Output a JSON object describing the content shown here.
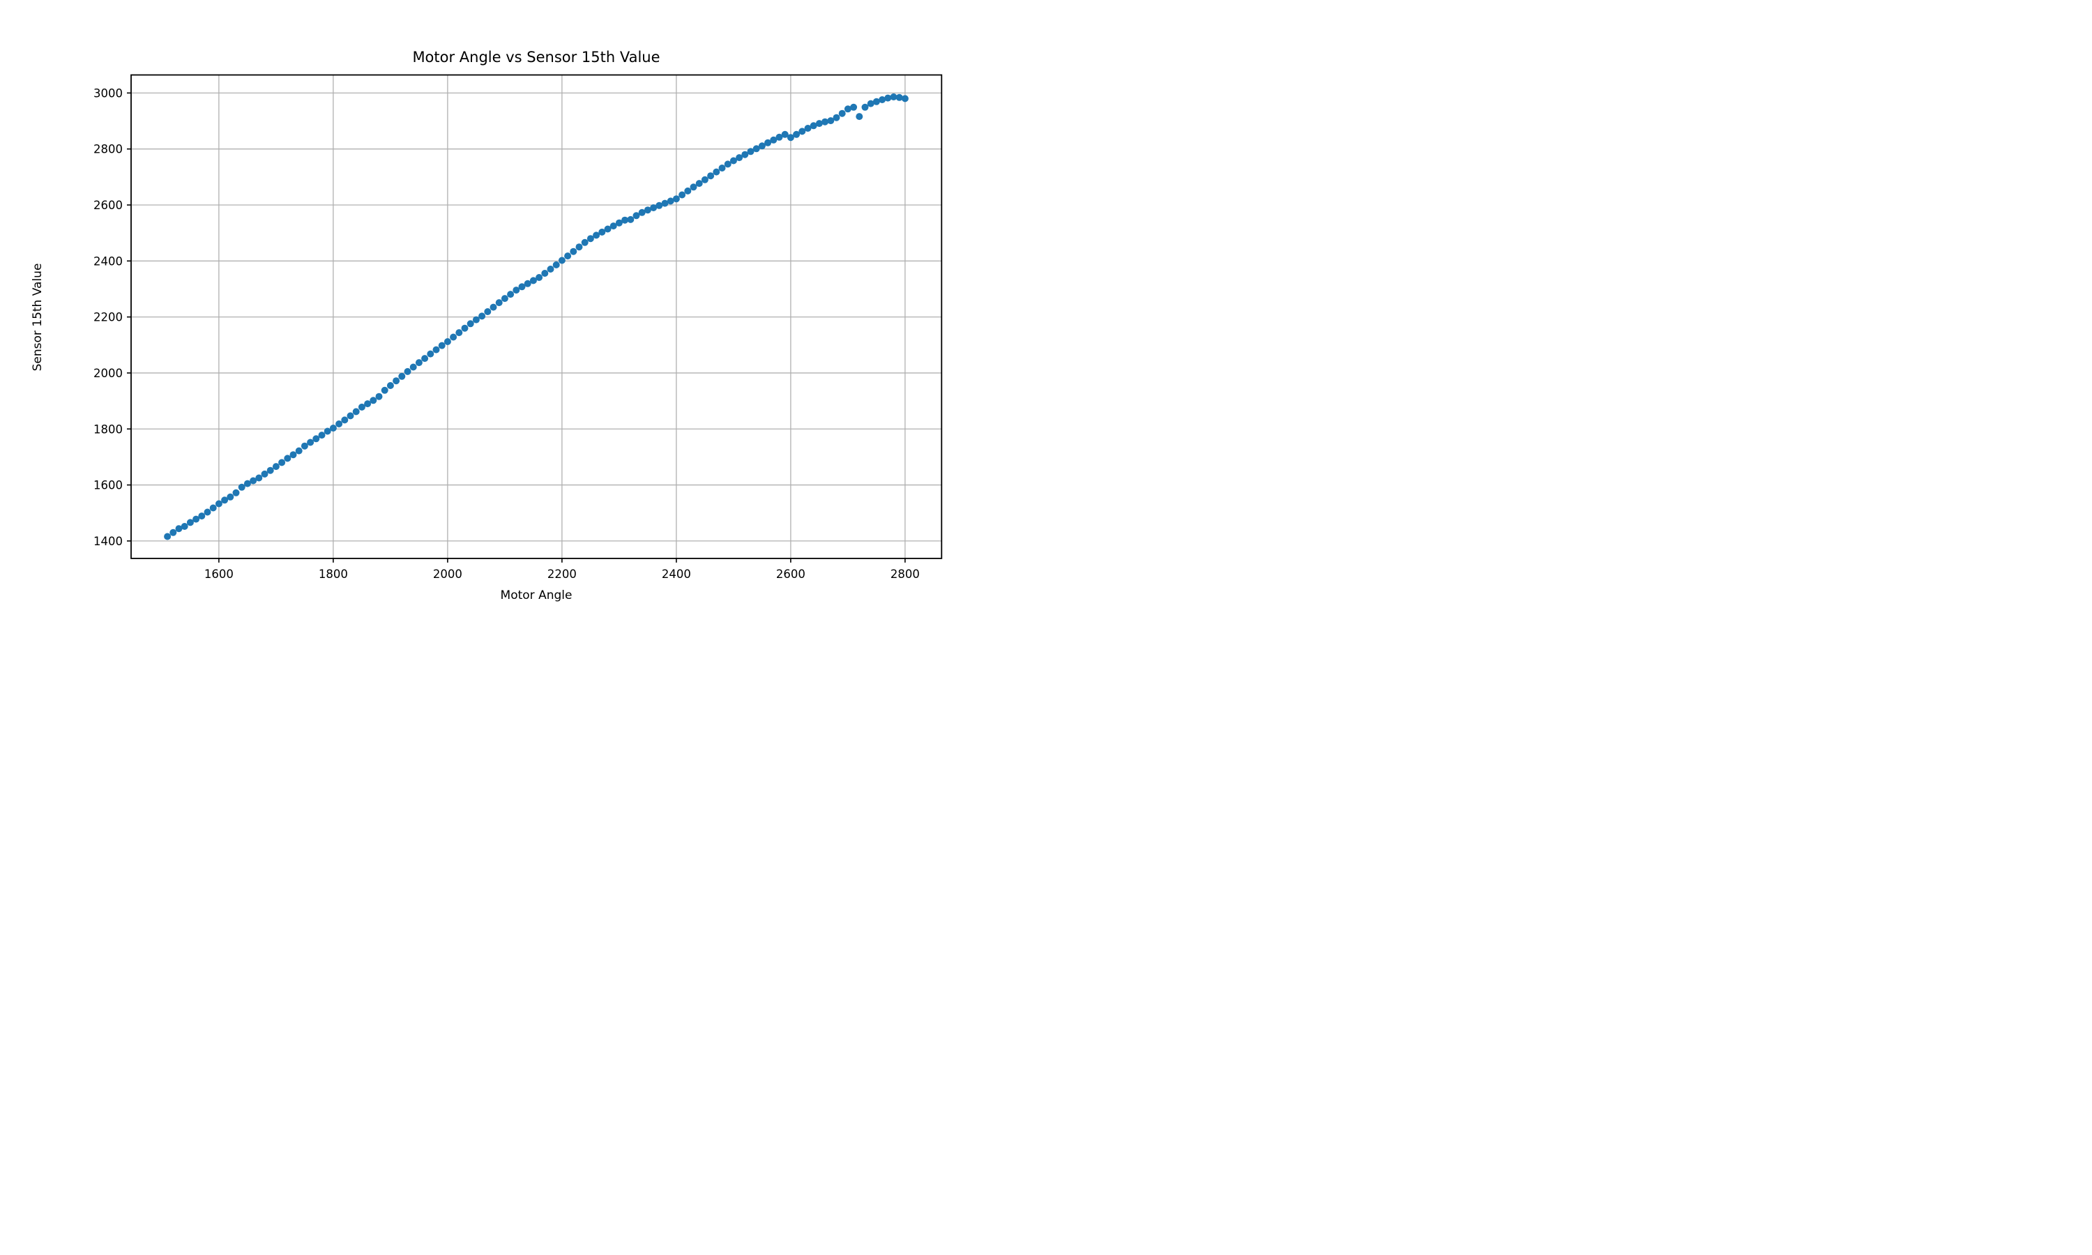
{
  "figure": {
    "title": "Motor Angle vs Sensor 15th Value"
  },
  "chart_data": {
    "type": "scatter",
    "title": "Motor Angle vs Sensor 15th Value",
    "xlabel": "Motor Angle",
    "ylabel": "Sensor 15th Value",
    "xlim": [
      1446.5,
      2863.9
    ],
    "ylim": [
      1337.7,
      3064.4
    ],
    "x_ticks": [
      1600,
      1800,
      2000,
      2200,
      2400,
      2600,
      2800
    ],
    "y_ticks": [
      1400,
      1600,
      1800,
      2000,
      2200,
      2400,
      2600,
      2800,
      3000
    ],
    "grid": true,
    "legend": "none",
    "marker_color": "#1f77b4",
    "grid_color": "#b0b0b0",
    "spine_color": "#000000",
    "points": [
      [
        1510,
        1416
      ],
      [
        1520,
        1430
      ],
      [
        1530,
        1444
      ],
      [
        1540,
        1452
      ],
      [
        1550,
        1466
      ],
      [
        1560,
        1478
      ],
      [
        1570,
        1489
      ],
      [
        1580,
        1503
      ],
      [
        1590,
        1518
      ],
      [
        1600,
        1533
      ],
      [
        1610,
        1546
      ],
      [
        1620,
        1557
      ],
      [
        1630,
        1572
      ],
      [
        1640,
        1592
      ],
      [
        1650,
        1605
      ],
      [
        1660,
        1615
      ],
      [
        1670,
        1625
      ],
      [
        1680,
        1639
      ],
      [
        1690,
        1652
      ],
      [
        1700,
        1666
      ],
      [
        1710,
        1680
      ],
      [
        1720,
        1695
      ],
      [
        1730,
        1708
      ],
      [
        1740,
        1722
      ],
      [
        1750,
        1739
      ],
      [
        1760,
        1752
      ],
      [
        1770,
        1765
      ],
      [
        1780,
        1778
      ],
      [
        1790,
        1792
      ],
      [
        1800,
        1803
      ],
      [
        1810,
        1818
      ],
      [
        1820,
        1832
      ],
      [
        1830,
        1847
      ],
      [
        1840,
        1862
      ],
      [
        1850,
        1878
      ],
      [
        1860,
        1890
      ],
      [
        1870,
        1902
      ],
      [
        1880,
        1916
      ],
      [
        1890,
        1938
      ],
      [
        1900,
        1955
      ],
      [
        1910,
        1972
      ],
      [
        1920,
        1988
      ],
      [
        1930,
        2005
      ],
      [
        1940,
        2021
      ],
      [
        1950,
        2037
      ],
      [
        1960,
        2052
      ],
      [
        1970,
        2068
      ],
      [
        1980,
        2083
      ],
      [
        1990,
        2098
      ],
      [
        2000,
        2112
      ],
      [
        2010,
        2128
      ],
      [
        2020,
        2144
      ],
      [
        2030,
        2160
      ],
      [
        2040,
        2176
      ],
      [
        2050,
        2190
      ],
      [
        2060,
        2203
      ],
      [
        2070,
        2219
      ],
      [
        2080,
        2235
      ],
      [
        2090,
        2251
      ],
      [
        2100,
        2266
      ],
      [
        2110,
        2281
      ],
      [
        2120,
        2296
      ],
      [
        2130,
        2308
      ],
      [
        2140,
        2319
      ],
      [
        2150,
        2330
      ],
      [
        2160,
        2341
      ],
      [
        2170,
        2356
      ],
      [
        2180,
        2371
      ],
      [
        2190,
        2386
      ],
      [
        2200,
        2402
      ],
      [
        2210,
        2418
      ],
      [
        2220,
        2434
      ],
      [
        2230,
        2450
      ],
      [
        2240,
        2466
      ],
      [
        2250,
        2480
      ],
      [
        2260,
        2492
      ],
      [
        2270,
        2503
      ],
      [
        2280,
        2514
      ],
      [
        2290,
        2525
      ],
      [
        2300,
        2536
      ],
      [
        2310,
        2546
      ],
      [
        2320,
        2548
      ],
      [
        2330,
        2562
      ],
      [
        2340,
        2573
      ],
      [
        2350,
        2582
      ],
      [
        2360,
        2590
      ],
      [
        2370,
        2598
      ],
      [
        2380,
        2606
      ],
      [
        2390,
        2614
      ],
      [
        2400,
        2622
      ],
      [
        2410,
        2636
      ],
      [
        2420,
        2650
      ],
      [
        2430,
        2664
      ],
      [
        2440,
        2677
      ],
      [
        2450,
        2690
      ],
      [
        2460,
        2704
      ],
      [
        2470,
        2718
      ],
      [
        2480,
        2732
      ],
      [
        2490,
        2746
      ],
      [
        2500,
        2758
      ],
      [
        2510,
        2769
      ],
      [
        2520,
        2780
      ],
      [
        2530,
        2791
      ],
      [
        2540,
        2801
      ],
      [
        2550,
        2811
      ],
      [
        2560,
        2822
      ],
      [
        2570,
        2832
      ],
      [
        2580,
        2842
      ],
      [
        2590,
        2852
      ],
      [
        2600,
        2841
      ],
      [
        2610,
        2852
      ],
      [
        2620,
        2863
      ],
      [
        2630,
        2874
      ],
      [
        2640,
        2883
      ],
      [
        2650,
        2891
      ],
      [
        2660,
        2897
      ],
      [
        2670,
        2901
      ],
      [
        2680,
        2912
      ],
      [
        2690,
        2927
      ],
      [
        2700,
        2943
      ],
      [
        2710,
        2949
      ],
      [
        2720,
        2916
      ],
      [
        2730,
        2949
      ],
      [
        2740,
        2962
      ],
      [
        2750,
        2969
      ],
      [
        2760,
        2976
      ],
      [
        2770,
        2982
      ],
      [
        2780,
        2986
      ],
      [
        2790,
        2984
      ],
      [
        2800,
        2980
      ]
    ]
  }
}
